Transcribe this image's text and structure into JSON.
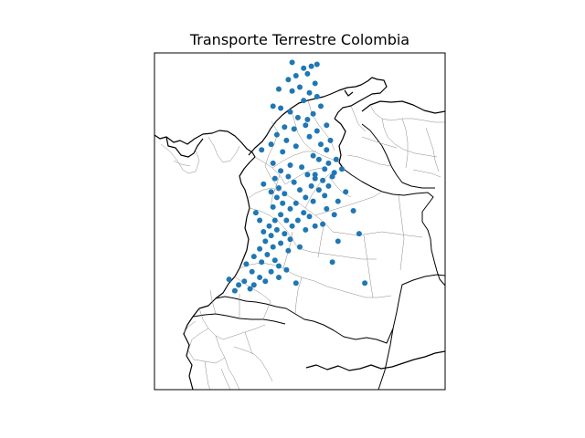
{
  "chart_data": {
    "type": "scatter",
    "title": "Transporte Terrestre Colombia",
    "xlabel": "",
    "ylabel": "",
    "xlim": [
      -82.0,
      -66.8
    ],
    "ylim": [
      -4.3,
      13.4
    ],
    "grid": false,
    "series": [
      {
        "color": "#1f77b4",
        "marker": "circle",
        "points": [
          [
            -74.8,
            12.9
          ],
          [
            -74.2,
            12.6
          ],
          [
            -73.8,
            12.7
          ],
          [
            -73.5,
            12.8
          ],
          [
            -74.0,
            12.3
          ],
          [
            -74.6,
            12.2
          ],
          [
            -75.0,
            12.0
          ],
          [
            -75.5,
            11.5
          ],
          [
            -74.8,
            11.4
          ],
          [
            -74.4,
            11.6
          ],
          [
            -73.9,
            11.3
          ],
          [
            -73.6,
            11.8
          ],
          [
            -74.2,
            10.9
          ],
          [
            -75.4,
            10.5
          ],
          [
            -75.8,
            10.6
          ],
          [
            -74.9,
            10.3
          ],
          [
            -74.5,
            10.0
          ],
          [
            -73.7,
            10.2
          ],
          [
            -74.0,
            9.9
          ],
          [
            -75.2,
            9.5
          ],
          [
            -75.6,
            9.1
          ],
          [
            -74.7,
            9.4
          ],
          [
            -74.1,
            9.6
          ],
          [
            -73.5,
            9.3
          ],
          [
            -73.9,
            9.0
          ],
          [
            -75.1,
            8.8
          ],
          [
            -75.9,
            8.6
          ],
          [
            -76.4,
            8.3
          ],
          [
            -75.3,
            8.2
          ],
          [
            -74.6,
            8.5
          ],
          [
            -73.7,
            8.0
          ],
          [
            -73.3,
            8.6
          ],
          [
            -73.0,
            8.3
          ],
          [
            -72.8,
            8.8
          ],
          [
            -73.4,
            7.8
          ],
          [
            -72.9,
            7.6
          ],
          [
            -73.1,
            7.3
          ],
          [
            -72.6,
            7.1
          ],
          [
            -73.6,
            7.0
          ],
          [
            -73.2,
            6.7
          ],
          [
            -72.7,
            6.9
          ],
          [
            -73.8,
            6.4
          ],
          [
            -73.4,
            6.2
          ],
          [
            -72.9,
            6.4
          ],
          [
            -73.1,
            5.9
          ],
          [
            -73.7,
            5.6
          ],
          [
            -74.1,
            5.8
          ],
          [
            -74.4,
            6.2
          ],
          [
            -74.7,
            6.6
          ],
          [
            -75.0,
            6.9
          ],
          [
            -75.4,
            7.2
          ],
          [
            -75.7,
            6.8
          ],
          [
            -75.5,
            6.3
          ],
          [
            -75.2,
            6.0
          ],
          [
            -75.9,
            6.1
          ],
          [
            -76.3,
            6.5
          ],
          [
            -75.6,
            5.8
          ],
          [
            -75.3,
            5.5
          ],
          [
            -75.8,
            5.3
          ],
          [
            -74.9,
            5.2
          ],
          [
            -74.6,
            5.5
          ],
          [
            -74.2,
            5.0
          ],
          [
            -73.9,
            4.8
          ],
          [
            -74.5,
            4.6
          ],
          [
            -74.8,
            4.3
          ],
          [
            -75.1,
            4.6
          ],
          [
            -75.4,
            4.9
          ],
          [
            -75.7,
            4.6
          ],
          [
            -76.0,
            4.3
          ],
          [
            -76.3,
            4.0
          ],
          [
            -75.9,
            3.8
          ],
          [
            -75.6,
            4.1
          ],
          [
            -75.2,
            3.9
          ],
          [
            -74.9,
            3.6
          ],
          [
            -75.4,
            3.4
          ],
          [
            -75.8,
            3.2
          ],
          [
            -76.2,
            3.5
          ],
          [
            -76.5,
            3.1
          ],
          [
            -76.1,
            2.8
          ],
          [
            -75.7,
            2.5
          ],
          [
            -76.4,
            2.4
          ],
          [
            -76.8,
            2.7
          ],
          [
            -77.2,
            2.3
          ],
          [
            -76.9,
            1.9
          ],
          [
            -76.5,
            1.6
          ],
          [
            -77.3,
            1.4
          ],
          [
            -77.6,
            1.2
          ],
          [
            -77.0,
            1.0
          ],
          [
            -77.8,
            0.9
          ],
          [
            -78.1,
            1.5
          ],
          [
            -76.2,
            1.4
          ],
          [
            -75.9,
            1.9
          ],
          [
            -75.5,
            2.2
          ],
          [
            -75.1,
            2.0
          ],
          [
            -74.6,
            1.3
          ],
          [
            -73.2,
            4.4
          ],
          [
            -72.6,
            4.9
          ],
          [
            -71.6,
            5.1
          ],
          [
            -72.0,
            6.1
          ],
          [
            -71.3,
            3.9
          ],
          [
            -72.4,
            3.5
          ],
          [
            -72.7,
            2.4
          ],
          [
            -71.0,
            1.3
          ],
          [
            -73.5,
            11.1
          ],
          [
            -74.3,
            7.4
          ],
          [
            -74.0,
            7.0
          ],
          [
            -73.6,
            6.8
          ],
          [
            -74.9,
            7.5
          ],
          [
            -75.8,
            7.6
          ],
          [
            -76.7,
            5.0
          ],
          [
            -76.5,
            4.6
          ],
          [
            -74.4,
            3.2
          ],
          [
            -74.1,
            4.1
          ],
          [
            -73.6,
            4.3
          ],
          [
            -73.0,
            5.2
          ],
          [
            -72.4,
            5.6
          ],
          [
            -72.2,
            7.3
          ],
          [
            -72.5,
            7.8
          ],
          [
            -73.0,
            9.6
          ],
          [
            -73.3,
            10.6
          ],
          [
            -75.0,
            3.0
          ],
          [
            -75.5,
            1.6
          ],
          [
            -76.8,
            1.2
          ]
        ]
      }
    ]
  }
}
